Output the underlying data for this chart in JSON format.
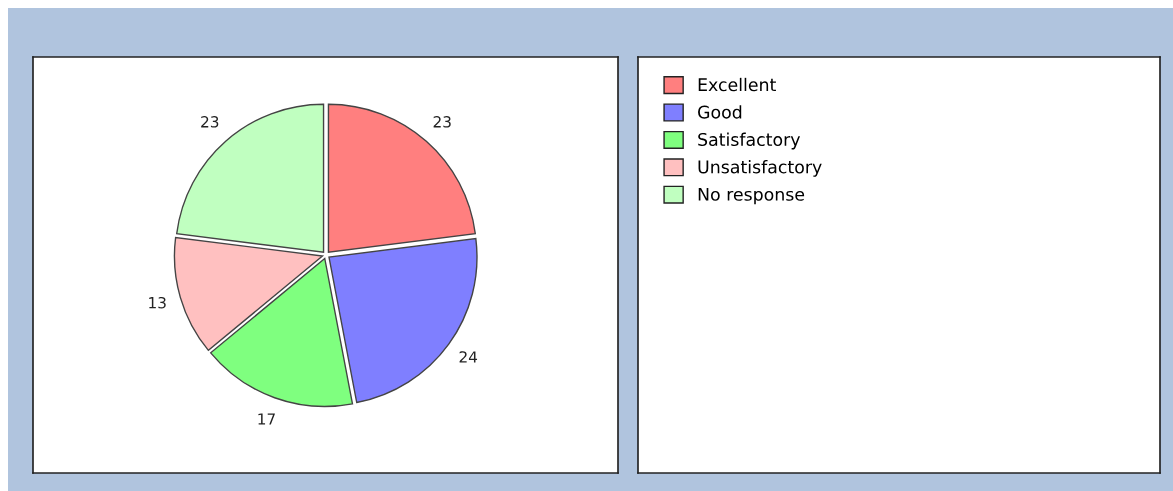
{
  "chart_data": {
    "type": "pie",
    "categories": [
      "Excellent",
      "Good",
      "Satisfactory",
      "Unsatisfactory",
      "No response"
    ],
    "values": [
      23,
      24,
      17,
      13,
      23
    ],
    "colors": [
      "#ff7f7f",
      "#7f7fff",
      "#7fff7f",
      "#ffc0c0",
      "#c0ffc0"
    ],
    "data_labels": true,
    "legend": "right"
  }
}
